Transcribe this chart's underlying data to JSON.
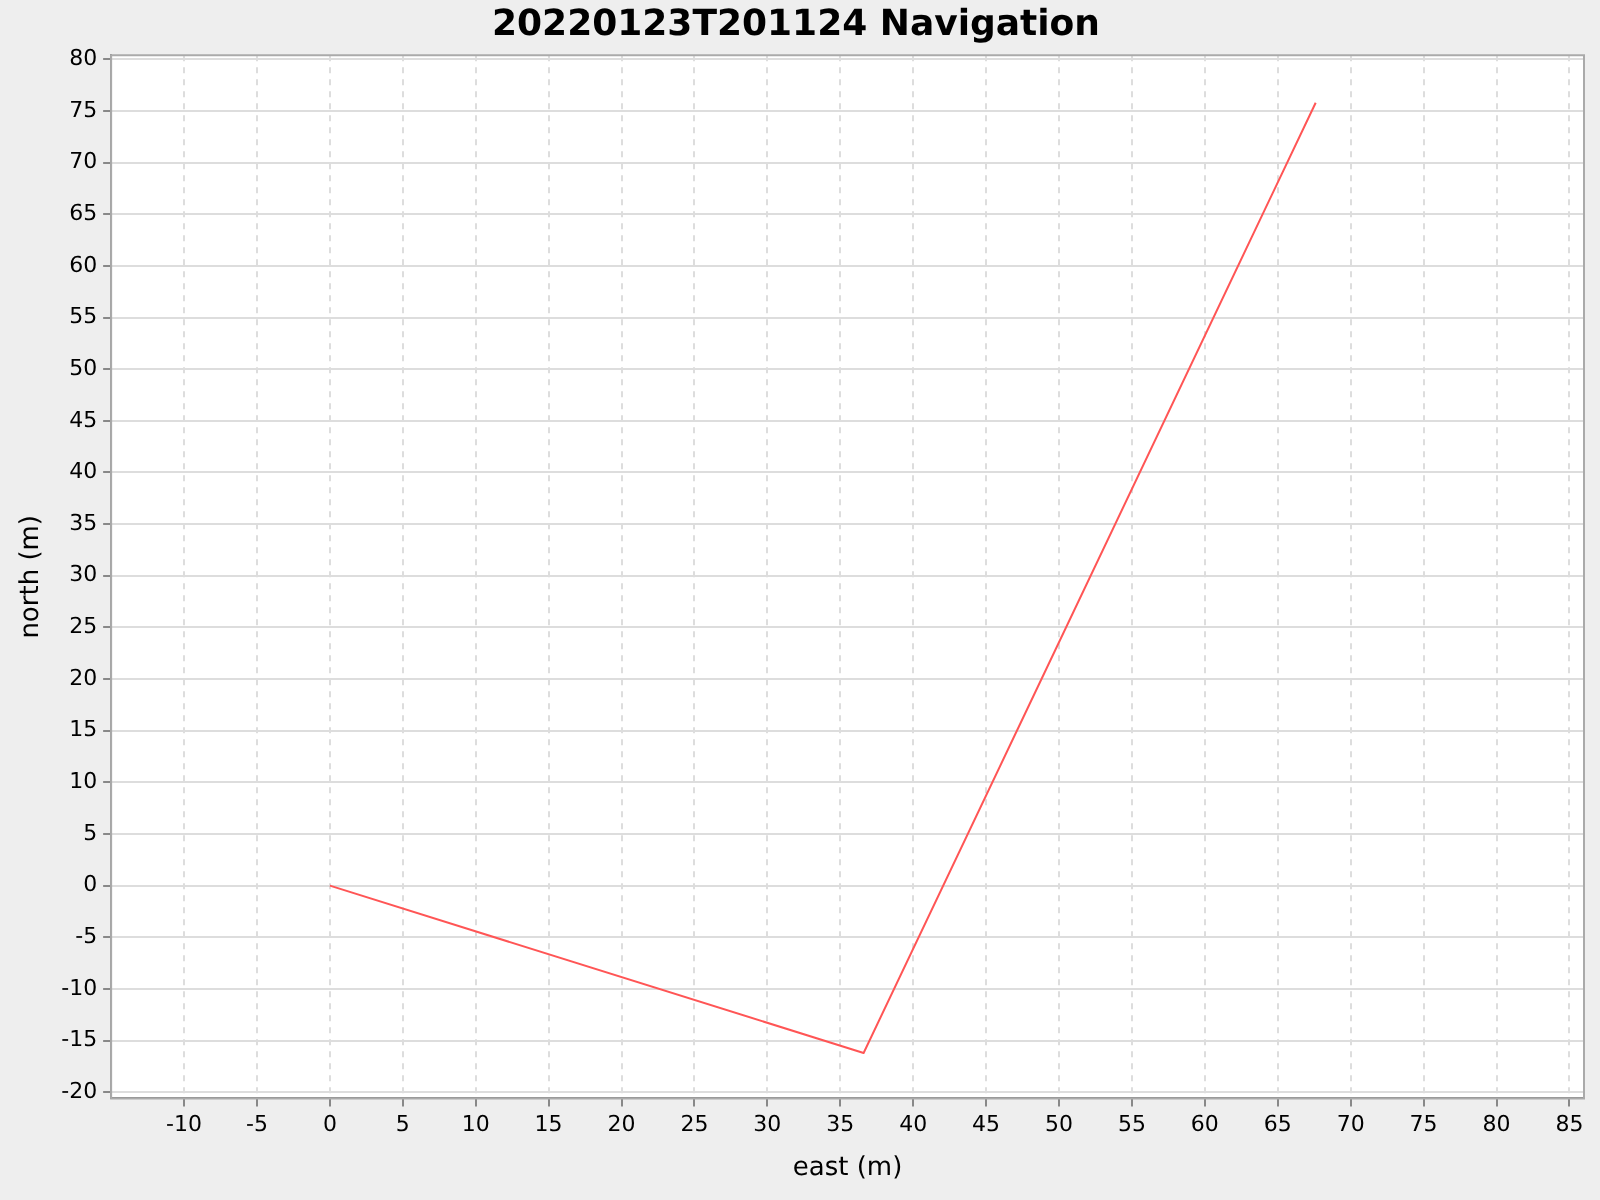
{
  "chart_data": {
    "type": "line",
    "title": "20220123T201124 Navigation",
    "xlabel": "east (m)",
    "ylabel": "north (m)",
    "series": [
      {
        "color": "#ff5555",
        "x": [
          0,
          36.6,
          67.6
        ],
        "values": [
          0,
          -16.2,
          75.8
        ]
      }
    ],
    "xlim": [
      -15,
      86
    ],
    "xticks": [
      -10,
      -5,
      0,
      5,
      10,
      15,
      20,
      25,
      30,
      35,
      40,
      45,
      50,
      55,
      60,
      65,
      70,
      75,
      80,
      85
    ],
    "ylim": [
      -20.6,
      80.4
    ],
    "yticks": [
      -20,
      -15,
      -10,
      -5,
      0,
      5,
      10,
      15,
      20,
      25,
      30,
      35,
      40,
      45,
      50,
      55,
      60,
      65,
      70,
      75,
      80
    ],
    "grid": true,
    "legend": false,
    "marker": "none",
    "line_style": "solid"
  }
}
